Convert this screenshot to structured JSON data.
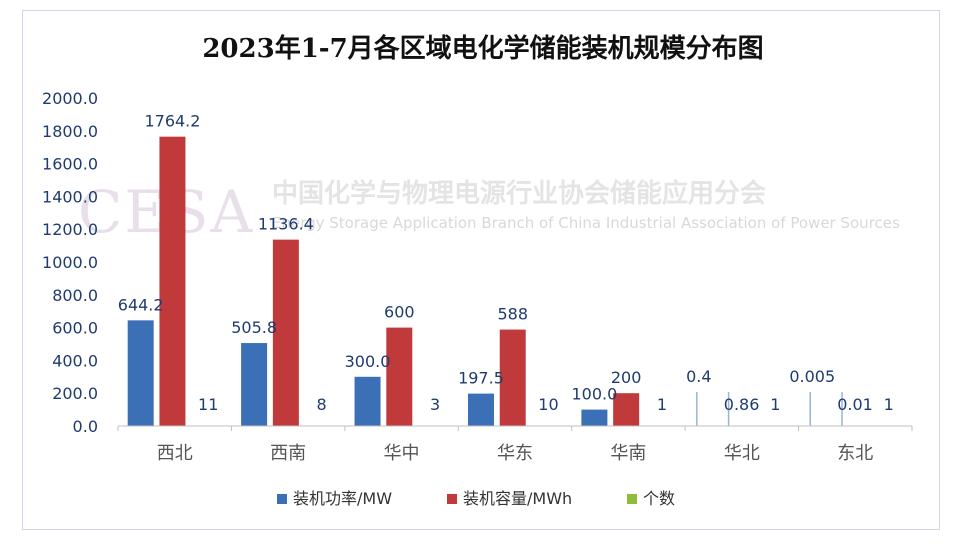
{
  "chart_data": {
    "type": "bar",
    "title": "2023年1-7月各区域电化学储能装机规模分布图",
    "categories": [
      "西北",
      "西南",
      "华中",
      "华东",
      "华南",
      "华北",
      "东北"
    ],
    "series": [
      {
        "name": "装机功率/MW",
        "color": "#3b6fb6",
        "values": [
          644.2,
          505.8,
          300.0,
          197.5,
          100.0,
          0.4,
          0.005
        ],
        "labels": [
          "644.2",
          "505.8",
          "300.0",
          "197.5",
          "100.0",
          "0.4",
          "0.005"
        ]
      },
      {
        "name": "装机容量/MWh",
        "color": "#c0393b",
        "values": [
          1764.2,
          1136.4,
          600,
          588,
          200,
          0.86,
          0.01
        ],
        "labels": [
          "1764.2",
          "1136.4",
          "600",
          "588",
          "200",
          "0.86",
          "0.01"
        ]
      },
      {
        "name": "个数",
        "color": "#8fbc3b",
        "values": [
          11,
          8,
          3,
          10,
          1,
          1,
          1
        ],
        "labels": [
          "11",
          "8",
          "3",
          "10",
          "1",
          "1",
          "1"
        ]
      }
    ],
    "yticks": [
      "0.0",
      "200.0",
      "400.0",
      "600.0",
      "800.0",
      "1000.0",
      "1200.0",
      "1400.0",
      "1600.0",
      "1800.0",
      "2000.0"
    ],
    "ylim": [
      0,
      2000
    ],
    "grid": false,
    "legend_position": "bottom"
  },
  "watermark": {
    "logo_text": "CESA",
    "org_name_cn": "中国化学与物理电源行业协会储能应用分会",
    "org_name_en": "Energy Storage Application Branch of China Industrial Association of Power Sources"
  }
}
